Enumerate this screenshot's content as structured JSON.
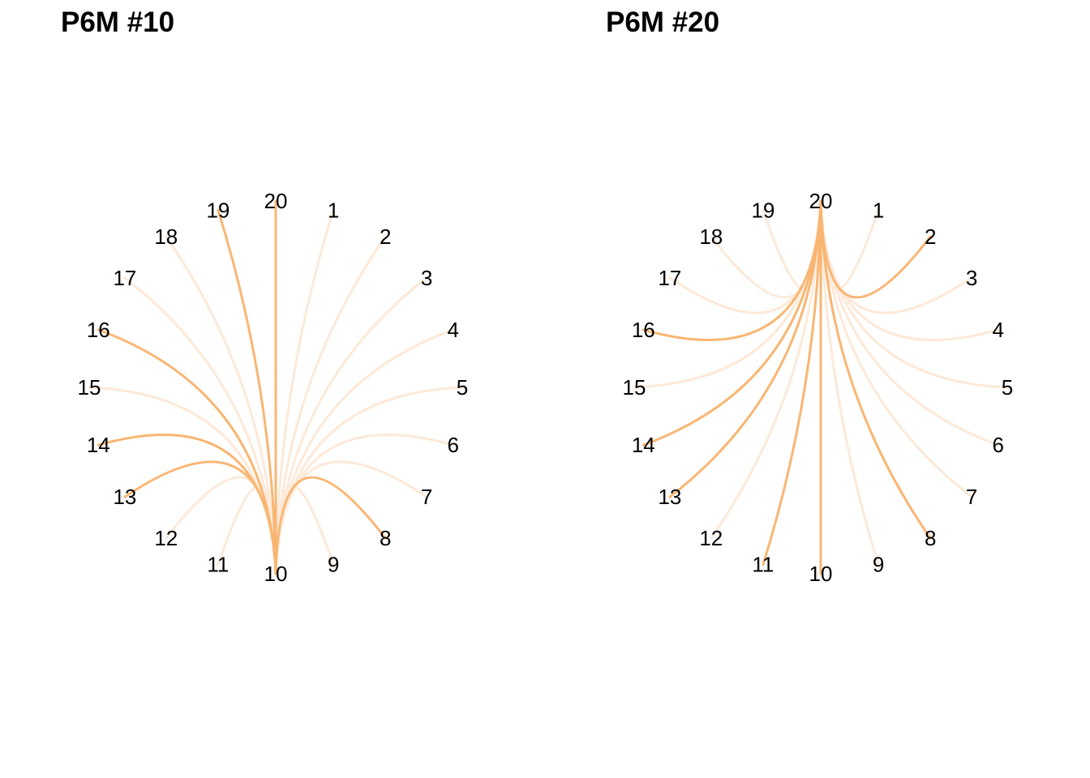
{
  "chart_data": [
    {
      "type": "chord",
      "title": "P6M #10",
      "focus": 10,
      "nodes": [
        1,
        2,
        3,
        4,
        5,
        6,
        7,
        8,
        9,
        10,
        11,
        12,
        13,
        14,
        15,
        16,
        17,
        18,
        19,
        20
      ],
      "links": [
        {
          "source": 10,
          "target": 1,
          "strength": "weak"
        },
        {
          "source": 10,
          "target": 2,
          "strength": "weak"
        },
        {
          "source": 10,
          "target": 3,
          "strength": "weak"
        },
        {
          "source": 10,
          "target": 4,
          "strength": "weak"
        },
        {
          "source": 10,
          "target": 5,
          "strength": "weak"
        },
        {
          "source": 10,
          "target": 6,
          "strength": "weak"
        },
        {
          "source": 10,
          "target": 7,
          "strength": "weak"
        },
        {
          "source": 10,
          "target": 8,
          "strength": "strong"
        },
        {
          "source": 10,
          "target": 9,
          "strength": "weak"
        },
        {
          "source": 10,
          "target": 11,
          "strength": "weak"
        },
        {
          "source": 10,
          "target": 12,
          "strength": "weak"
        },
        {
          "source": 10,
          "target": 13,
          "strength": "strong"
        },
        {
          "source": 10,
          "target": 14,
          "strength": "strong"
        },
        {
          "source": 10,
          "target": 15,
          "strength": "weak"
        },
        {
          "source": 10,
          "target": 16,
          "strength": "strong"
        },
        {
          "source": 10,
          "target": 17,
          "strength": "weak"
        },
        {
          "source": 10,
          "target": 18,
          "strength": "weak"
        },
        {
          "source": 10,
          "target": 19,
          "strength": "strong"
        },
        {
          "source": 10,
          "target": 20,
          "strength": "strong"
        }
      ]
    },
    {
      "type": "chord",
      "title": "P6M #20",
      "focus": 20,
      "nodes": [
        1,
        2,
        3,
        4,
        5,
        6,
        7,
        8,
        9,
        10,
        11,
        12,
        13,
        14,
        15,
        16,
        17,
        18,
        19,
        20
      ],
      "links": [
        {
          "source": 20,
          "target": 1,
          "strength": "weak"
        },
        {
          "source": 20,
          "target": 2,
          "strength": "strong"
        },
        {
          "source": 20,
          "target": 3,
          "strength": "weak"
        },
        {
          "source": 20,
          "target": 4,
          "strength": "weak"
        },
        {
          "source": 20,
          "target": 5,
          "strength": "weak"
        },
        {
          "source": 20,
          "target": 6,
          "strength": "weak"
        },
        {
          "source": 20,
          "target": 7,
          "strength": "weak"
        },
        {
          "source": 20,
          "target": 8,
          "strength": "strong"
        },
        {
          "source": 20,
          "target": 9,
          "strength": "weak"
        },
        {
          "source": 20,
          "target": 10,
          "strength": "strong"
        },
        {
          "source": 20,
          "target": 11,
          "strength": "strong"
        },
        {
          "source": 20,
          "target": 12,
          "strength": "weak"
        },
        {
          "source": 20,
          "target": 13,
          "strength": "strong"
        },
        {
          "source": 20,
          "target": 14,
          "strength": "strong"
        },
        {
          "source": 20,
          "target": 15,
          "strength": "weak"
        },
        {
          "source": 20,
          "target": 16,
          "strength": "strong"
        },
        {
          "source": 20,
          "target": 17,
          "strength": "weak"
        },
        {
          "source": 20,
          "target": 18,
          "strength": "weak"
        },
        {
          "source": 20,
          "target": 19,
          "strength": "weak"
        }
      ]
    }
  ],
  "colors": {
    "strong": "#F9B673",
    "weak": "#FDE9D8",
    "label": "#000000",
    "background": "#FFFFFF"
  }
}
